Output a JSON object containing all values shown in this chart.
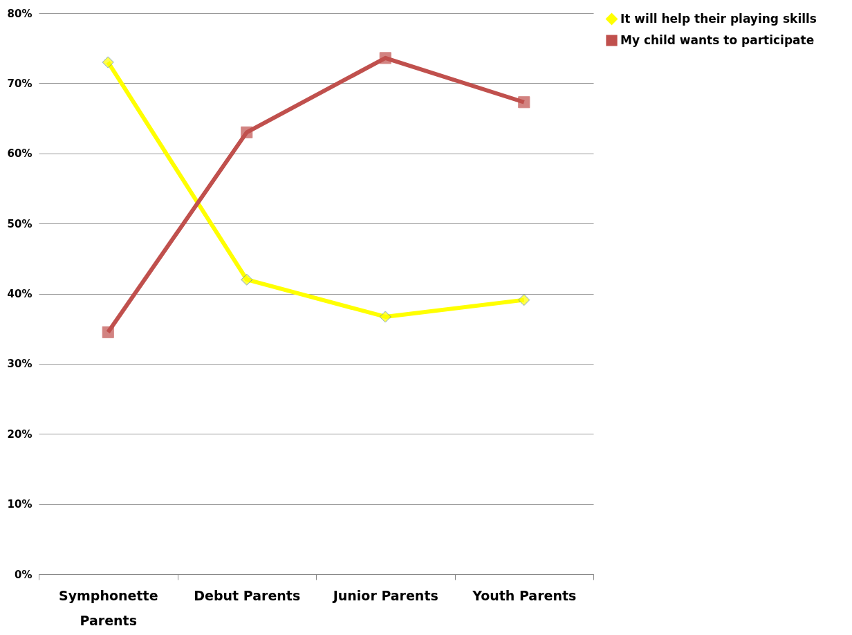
{
  "chart_data": {
    "type": "line",
    "categories": [
      "Symphonette Parents",
      "Debut Parents",
      "Junior Parents",
      "Youth Parents"
    ],
    "series": [
      {
        "name": "It will help their playing skills",
        "color": "#ffff00",
        "marker": "diamond",
        "values": [
          73.0,
          42.0,
          36.7,
          39.1
        ]
      },
      {
        "name": "My child wants to participate",
        "color": "#c0504d",
        "marker": "square",
        "values": [
          34.5,
          63.0,
          73.6,
          67.3
        ]
      }
    ],
    "ylim": [
      0,
      80
    ],
    "yticks": [
      {
        "value": 0,
        "label": "0%"
      },
      {
        "value": 10,
        "label": "10%"
      },
      {
        "value": 20,
        "label": "20%"
      },
      {
        "value": 30,
        "label": "30%"
      },
      {
        "value": 40,
        "label": "40%"
      },
      {
        "value": 50,
        "label": "50%"
      },
      {
        "value": 60,
        "label": "60%"
      },
      {
        "value": 70,
        "label": "70%"
      },
      {
        "value": 80,
        "label": "80%"
      }
    ],
    "grid": "y",
    "legend": "right"
  }
}
